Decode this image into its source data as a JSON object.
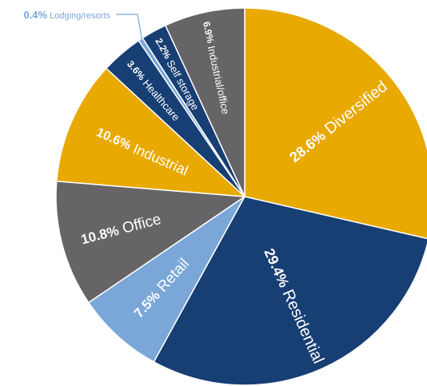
{
  "chart_data": {
    "type": "pie",
    "title": "",
    "slices": [
      {
        "label": "Diversified",
        "value": 28.6,
        "pct_text": "28.6%",
        "color": "#e8a900"
      },
      {
        "label": "Residential",
        "value": 29.4,
        "pct_text": "29.4%",
        "color": "#173f74"
      },
      {
        "label": "Retail",
        "value": 7.5,
        "pct_text": "7.5%",
        "color": "#7ba7d8"
      },
      {
        "label": "Office",
        "value": 10.8,
        "pct_text": "10.8%",
        "color": "#666466"
      },
      {
        "label": "Industrial",
        "value": 10.6,
        "pct_text": "10.6%",
        "color": "#e8a900"
      },
      {
        "label": "Healthcare",
        "value": 3.6,
        "pct_text": "3.6%",
        "color": "#173f74"
      },
      {
        "label": "Lodging/resorts",
        "value": 0.4,
        "pct_text": "0.4%",
        "color": "#7ba7d8"
      },
      {
        "label": "Self storage",
        "value": 2.2,
        "pct_text": "2.2%",
        "color": "#173f74"
      },
      {
        "label": "Industrial/office",
        "value": 6.9,
        "pct_text": "6.9%",
        "color": "#666466"
      }
    ],
    "label_color_external": "#7ba7d8",
    "start": "12 o'clock",
    "direction": "clockwise"
  }
}
